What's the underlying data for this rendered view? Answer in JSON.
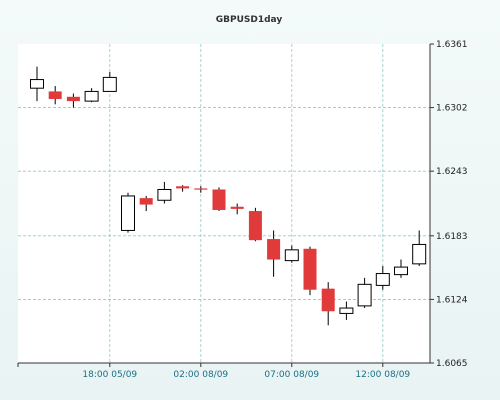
{
  "chart_data": {
    "type": "candlestick",
    "title": "GBPUSD1day",
    "xlabel": "",
    "ylabel": "",
    "ylim": [
      1.6065,
      1.6361
    ],
    "y_ticks": [
      "1.6361",
      "1.6302",
      "1.6243",
      "1.6183",
      "1.6124",
      "1.6065"
    ],
    "x_ticks": [
      {
        "label": "18:00 05/09",
        "index": 4
      },
      {
        "label": "02:00 08/09",
        "index": 9
      },
      {
        "label": "07:00 08/09",
        "index": 14
      },
      {
        "label": "12:00 08/09",
        "index": 19
      }
    ],
    "grid": true,
    "colors": {
      "up_fill": "#ffffff",
      "down_fill": "#e03a3a",
      "outline": "#000000",
      "grid": "#8fcaca"
    },
    "candles": [
      {
        "open": 1.632,
        "high": 1.634,
        "low": 1.6308,
        "close": 1.6328
      },
      {
        "open": 1.6317,
        "high": 1.6322,
        "low": 1.6305,
        "close": 1.631
      },
      {
        "open": 1.6312,
        "high": 1.6315,
        "low": 1.6302,
        "close": 1.6308
      },
      {
        "open": 1.6308,
        "high": 1.632,
        "low": 1.6307,
        "close": 1.6317
      },
      {
        "open": 1.6317,
        "high": 1.6335,
        "low": 1.6317,
        "close": 1.633
      },
      {
        "open": 1.6188,
        "high": 1.6223,
        "low": 1.6186,
        "close": 1.622
      },
      {
        "open": 1.6218,
        "high": 1.622,
        "low": 1.6206,
        "close": 1.6212
      },
      {
        "open": 1.6216,
        "high": 1.6233,
        "low": 1.6213,
        "close": 1.6226
      },
      {
        "open": 1.6229,
        "high": 1.623,
        "low": 1.6224,
        "close": 1.6227
      },
      {
        "open": 1.6227,
        "high": 1.6229,
        "low": 1.6223,
        "close": 1.6226
      },
      {
        "open": 1.6226,
        "high": 1.6228,
        "low": 1.6206,
        "close": 1.6207
      },
      {
        "open": 1.621,
        "high": 1.6213,
        "low": 1.6203,
        "close": 1.6208
      },
      {
        "open": 1.6206,
        "high": 1.6209,
        "low": 1.6178,
        "close": 1.6179
      },
      {
        "open": 1.618,
        "high": 1.6188,
        "low": 1.6145,
        "close": 1.6161
      },
      {
        "open": 1.616,
        "high": 1.6174,
        "low": 1.6158,
        "close": 1.617
      },
      {
        "open": 1.6171,
        "high": 1.6173,
        "low": 1.6128,
        "close": 1.6133
      },
      {
        "open": 1.6134,
        "high": 1.614,
        "low": 1.61,
        "close": 1.6113
      },
      {
        "open": 1.6111,
        "high": 1.6122,
        "low": 1.6105,
        "close": 1.6116
      },
      {
        "open": 1.6118,
        "high": 1.6144,
        "low": 1.6116,
        "close": 1.6138
      },
      {
        "open": 1.6137,
        "high": 1.6155,
        "low": 1.6133,
        "close": 1.6148
      },
      {
        "open": 1.6147,
        "high": 1.6161,
        "low": 1.6144,
        "close": 1.6154
      },
      {
        "open": 1.6157,
        "high": 1.6188,
        "low": 1.6155,
        "close": 1.6175
      }
    ]
  }
}
